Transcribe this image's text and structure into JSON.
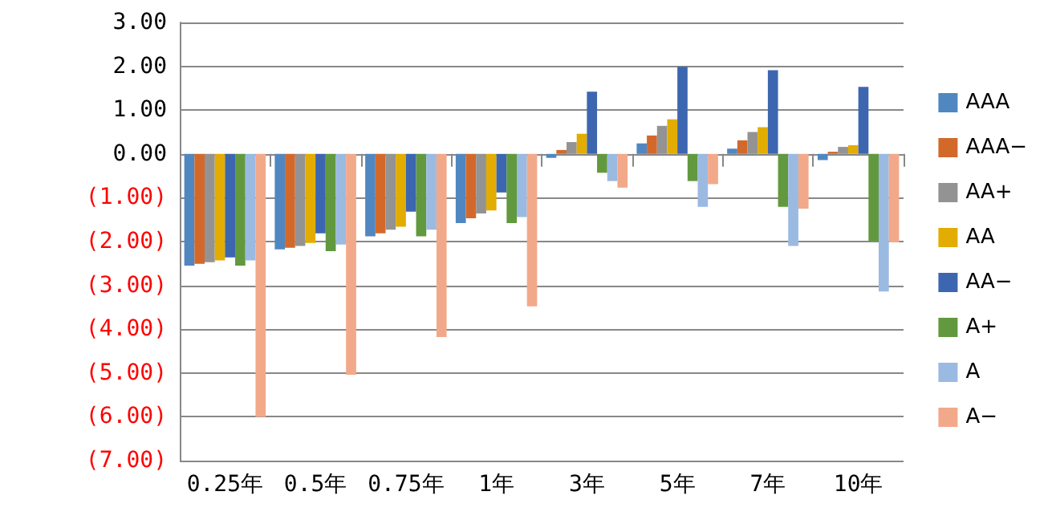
{
  "chart_data": {
    "type": "bar",
    "categories": [
      "0.25年",
      "0.5年",
      "0.75年",
      "1年",
      "3年",
      "5年",
      "7年",
      "10年"
    ],
    "series": [
      {
        "name": "AAA",
        "color": "#5087c0",
        "values": [
          -2.55,
          -2.18,
          -1.88,
          -1.58,
          -0.09,
          0.24,
          0.12,
          -0.14
        ]
      },
      {
        "name": "AAA−",
        "color": "#d2692b",
        "values": [
          -2.51,
          -2.14,
          -1.81,
          -1.47,
          0.09,
          0.42,
          0.31,
          0.05
        ]
      },
      {
        "name": "AA+",
        "color": "#939393",
        "values": [
          -2.47,
          -2.1,
          -1.73,
          -1.36,
          0.27,
          0.64,
          0.5,
          0.16
        ]
      },
      {
        "name": "AA",
        "color": "#e3ac00",
        "values": [
          -2.43,
          -2.03,
          -1.66,
          -1.29,
          0.46,
          0.79,
          0.61,
          0.2
        ]
      },
      {
        "name": "AA−",
        "color": "#3c66b0",
        "values": [
          -2.36,
          -1.81,
          -1.32,
          -0.88,
          1.42,
          1.99,
          1.91,
          1.53
        ]
      },
      {
        "name": "A+",
        "color": "#62993e",
        "values": [
          -2.55,
          -2.22,
          -1.88,
          -1.58,
          -0.43,
          -0.62,
          -1.21,
          -1.99
        ]
      },
      {
        "name": "A",
        "color": "#9bbae2",
        "values": [
          -2.43,
          -2.07,
          -1.73,
          -1.44,
          -0.62,
          -1.21,
          -2.1,
          -3.14
        ]
      },
      {
        "name": "A−",
        "color": "#f2a98a",
        "values": [
          -6.0,
          -5.04,
          -4.18,
          -3.48,
          -0.77,
          -0.69,
          -1.25,
          -2.02
        ]
      }
    ],
    "ylim": [
      -7,
      3
    ],
    "yticks": [
      {
        "value": 3,
        "label": "3.00"
      },
      {
        "value": 2,
        "label": "2.00"
      },
      {
        "value": 1,
        "label": "1.00"
      },
      {
        "value": 0,
        "label": "0.00"
      },
      {
        "value": -1,
        "label": "(1.00)"
      },
      {
        "value": -2,
        "label": "(2.00)"
      },
      {
        "value": -3,
        "label": "(3.00)"
      },
      {
        "value": -4,
        "label": "(4.00)"
      },
      {
        "value": -5,
        "label": "(5.00)"
      },
      {
        "value": -6,
        "label": "(6.00)"
      },
      {
        "value": -7,
        "label": "(7.00)"
      }
    ],
    "grid": "y",
    "legend": "right"
  }
}
